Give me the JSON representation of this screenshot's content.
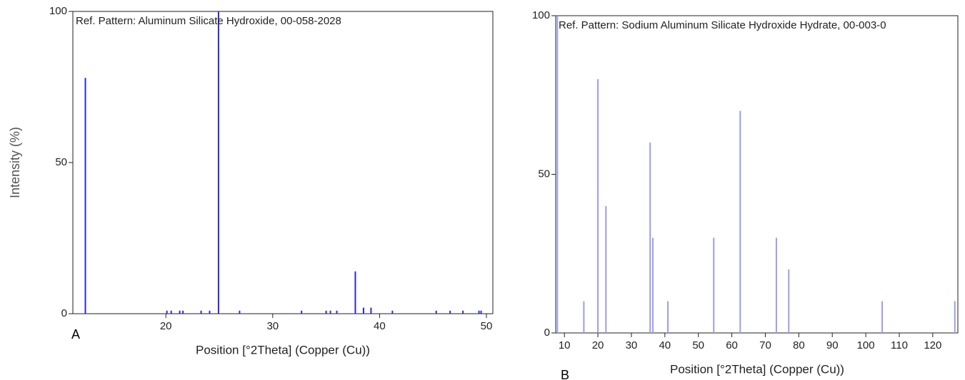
{
  "chart_data": [
    {
      "type": "stick",
      "title": "Ref. Pattern: Aluminum Silicate Hydroxide, 00-058-2028",
      "panel_label": "A",
      "xlabel": "Position [°2Theta] (Copper (Cu))",
      "ylabel": "Intensity (%)",
      "color": "#2b2bd6",
      "x": [
        12.47,
        20.1,
        20.5,
        21.3,
        21.6,
        23.3,
        24.1,
        24.93,
        26.9,
        32.7,
        35.0,
        35.4,
        36.0,
        37.73,
        38.5,
        39.2,
        41.2,
        45.3,
        46.6,
        47.8,
        49.3,
        49.5
      ],
      "values": [
        78,
        1,
        1,
        1,
        1,
        1,
        1,
        100,
        1,
        1,
        1,
        1,
        1,
        14,
        2,
        2,
        1,
        1,
        1,
        1,
        1,
        1
      ],
      "xlim": [
        11.3,
        50.6
      ],
      "ylim": [
        0,
        100
      ],
      "xticks": [
        20,
        30,
        40,
        50
      ],
      "yticks": [
        0,
        50,
        100
      ]
    },
    {
      "type": "stick",
      "title": "Ref. Pattern: Sodium Aluminum Silicate Hydroxide Hydrate, 00-003-0",
      "panel_label": "B",
      "xlabel": "Position [°2Theta] (Copper (Cu))",
      "color": "#9c9cf0",
      "x": [
        7.9,
        15.8,
        20.0,
        22.4,
        35.6,
        36.4,
        40.9,
        54.6,
        62.5,
        73.3,
        77.0,
        104.9,
        126.6
      ],
      "values": [
        100,
        10,
        80,
        40,
        60,
        30,
        10,
        30,
        70,
        30,
        20,
        10,
        10
      ],
      "xlim": [
        7.4,
        127.5
      ],
      "ylim": [
        0,
        100
      ],
      "xticks": [
        10,
        20,
        30,
        40,
        50,
        60,
        70,
        80,
        90,
        100,
        110,
        120
      ],
      "yticks": [
        0,
        50,
        100
      ]
    }
  ]
}
